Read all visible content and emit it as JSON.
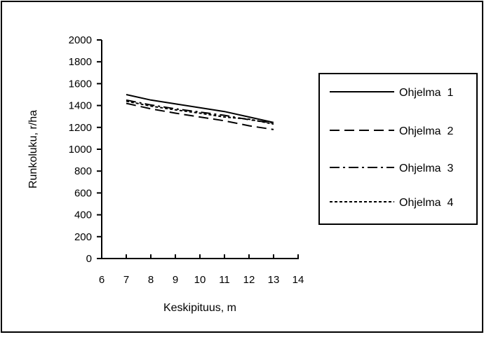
{
  "chart_data": {
    "type": "line",
    "title": "",
    "xlabel": "Keskipituus,  m",
    "ylabel": "Runkoluku,  r/ha",
    "xlim": [
      6,
      14
    ],
    "ylim": [
      0,
      2000
    ],
    "x_ticks": [
      "6",
      "7",
      "8",
      "9",
      "10",
      "11",
      "12",
      "13",
      "14"
    ],
    "y_ticks": [
      "0",
      "200",
      "400",
      "600",
      "800",
      "1000",
      "1200",
      "1400",
      "1600",
      "1800",
      "2000"
    ],
    "grid": false,
    "legend_position": "right",
    "series": [
      {
        "name": "Ohjelma  1",
        "dash": "solid",
        "x": [
          7,
          8,
          9,
          10,
          11,
          12,
          13
        ],
        "y": [
          1500,
          1450,
          1415,
          1380,
          1345,
          1295,
          1245
        ]
      },
      {
        "name": "Ohjelma  2",
        "dash": "dashed",
        "x": [
          7,
          8,
          9,
          10,
          11,
          12,
          13
        ],
        "y": [
          1420,
          1370,
          1330,
          1295,
          1260,
          1215,
          1180
        ]
      },
      {
        "name": "Ohjelma  3",
        "dash": "dashdot",
        "x": [
          7,
          8,
          9,
          10,
          11,
          12,
          13
        ],
        "y": [
          1450,
          1405,
          1370,
          1340,
          1310,
          1270,
          1240
        ]
      },
      {
        "name": "Ohjelma  4",
        "dash": "dotted",
        "x": [
          7,
          8,
          9,
          10,
          11,
          12,
          13
        ],
        "y": [
          1440,
          1395,
          1360,
          1330,
          1295,
          1275,
          1230
        ]
      }
    ]
  }
}
